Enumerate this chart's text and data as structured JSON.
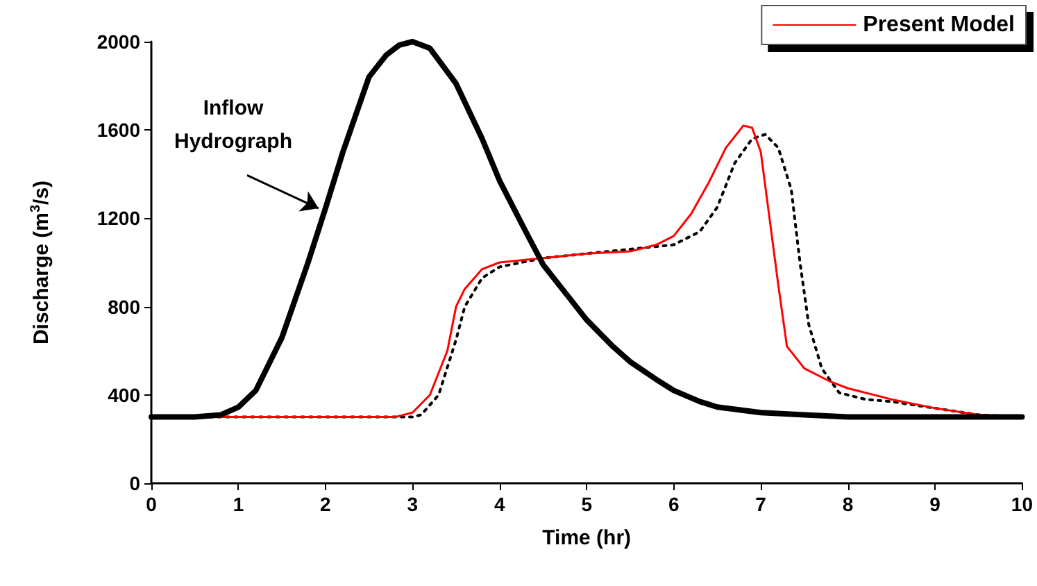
{
  "chart_data": {
    "type": "line",
    "xlabel": "Time (hr)",
    "ylabel": "Discharge (m$^{3}$/s)",
    "xlim": [
      0,
      10
    ],
    "xticks": [
      0,
      1,
      2,
      3,
      4,
      5,
      6,
      7,
      8,
      9,
      10
    ],
    "ylim": [
      0,
      2000
    ],
    "yticks": [
      0,
      400,
      800,
      1200,
      1600,
      2000
    ],
    "grid": false,
    "legend": "top right",
    "marker": "none",
    "annotations": [
      {
        "text": "Inflow Hydrograph",
        "x": 2,
        "y": 1245
      }
    ],
    "series": [
      {
        "color": "#000000",
        "line_style": "solid",
        "x": [
          0,
          0.5,
          0.8,
          1,
          1.2,
          1.5,
          1.8,
          2,
          2.2,
          2.5,
          2.7,
          2.85,
          3,
          3.2,
          3.5,
          3.8,
          4,
          4.3,
          4.5,
          4.8,
          5,
          5.3,
          5.5,
          5.8,
          6,
          6.3,
          6.5,
          7,
          7.5,
          8,
          10
        ],
        "values": [
          300,
          300,
          310,
          345,
          420,
          660,
          1000,
          1245,
          1500,
          1840,
          1940,
          1985,
          2000,
          1970,
          1810,
          1560,
          1370,
          1140,
          990,
          840,
          740,
          620,
          550,
          470,
          420,
          370,
          345,
          320,
          310,
          300,
          300
        ]
      },
      {
        "name": "Present Model",
        "color": "#ff0000",
        "line_style": "solid",
        "x": [
          0,
          2.8,
          3,
          3.2,
          3.4,
          3.5,
          3.6,
          3.8,
          4,
          4.5,
          5,
          5.5,
          5.8,
          6,
          6.2,
          6.4,
          6.6,
          6.8,
          6.9,
          7,
          7.1,
          7.2,
          7.3,
          7.5,
          7.8,
          8,
          8.5,
          9,
          9.5,
          10
        ],
        "values": [
          300,
          300,
          320,
          400,
          600,
          800,
          880,
          970,
          1000,
          1020,
          1040,
          1050,
          1080,
          1120,
          1220,
          1360,
          1520,
          1620,
          1610,
          1500,
          1200,
          900,
          620,
          520,
          460,
          430,
          380,
          340,
          310,
          300
        ]
      },
      {
        "color": "#000000",
        "line_style": "dotted",
        "x": [
          0,
          3,
          3.1,
          3.3,
          3.5,
          3.6,
          3.8,
          4,
          4.5,
          5,
          5.5,
          6,
          6.3,
          6.5,
          6.7,
          6.9,
          7.05,
          7.2,
          7.35,
          7.45,
          7.55,
          7.7,
          7.9,
          8.2,
          8.5,
          9,
          9.5,
          10
        ],
        "values": [
          300,
          300,
          310,
          400,
          650,
          800,
          930,
          980,
          1020,
          1040,
          1060,
          1080,
          1140,
          1250,
          1450,
          1560,
          1580,
          1520,
          1330,
          1000,
          720,
          520,
          410,
          380,
          370,
          340,
          310,
          300
        ]
      }
    ]
  }
}
